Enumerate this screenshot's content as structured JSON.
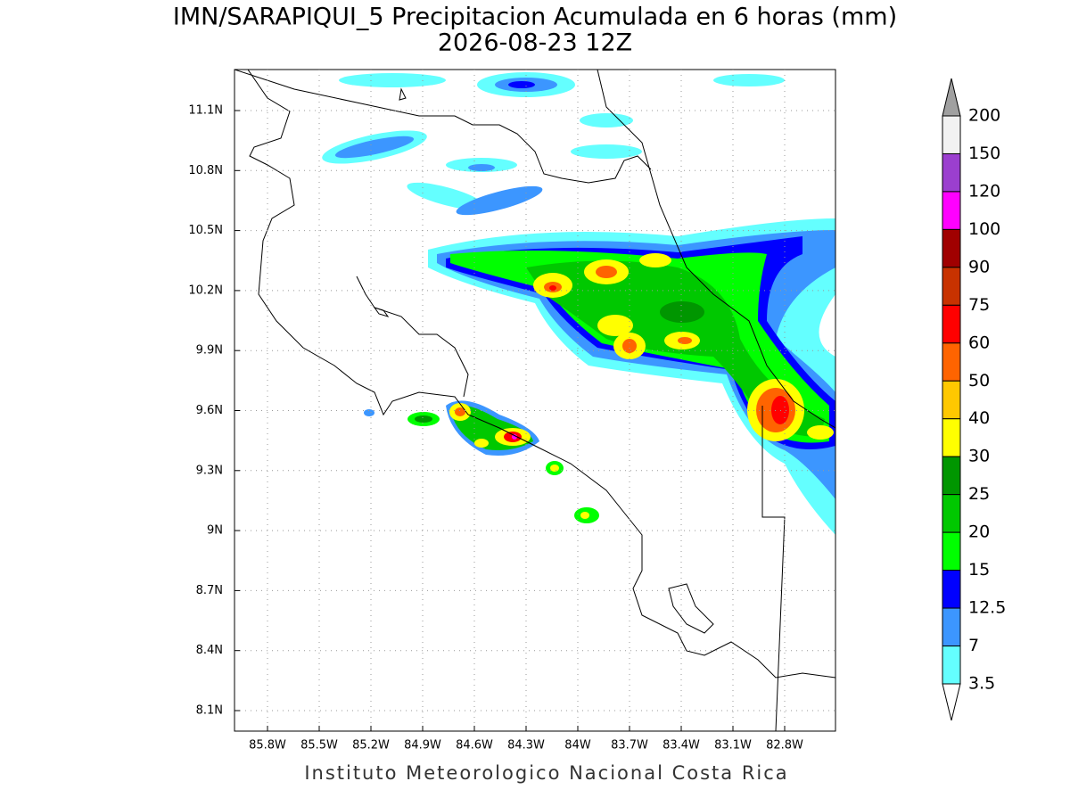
{
  "title": "IMN/SARAPIQUI_5 Precipitacion Acumulada en 6 horas (mm)",
  "subtitle": "2026-08-23 12Z",
  "map": {
    "xticks": [
      "85.8W",
      "85.5W",
      "85.2W",
      "84.9W",
      "84.6W",
      "84.3W",
      "84W",
      "83.7W",
      "83.4W",
      "83.1W",
      "82.8W"
    ],
    "yticks": [
      "11.1N",
      "10.8N",
      "10.5N",
      "10.2N",
      "9.9N",
      "9.6N",
      "9.3N",
      "9N",
      "8.7N",
      "8.4N",
      "8.1N"
    ]
  },
  "colorbar": {
    "labels": [
      200,
      150,
      120,
      100,
      90,
      75,
      60,
      50,
      40,
      30,
      25,
      20,
      15,
      12.5,
      7,
      3.5
    ],
    "colors": [
      "#f2f2f2",
      "#9b3fcf",
      "#ff00ff",
      "#a00000",
      "#c83200",
      "#ff0000",
      "#ff6400",
      "#ffc800",
      "#ffff00",
      "#009600",
      "#00c800",
      "#00ff00",
      "#0000ff",
      "#3c96ff",
      "#64ffff"
    ],
    "over_color": "#a0a0a0",
    "under_color": "#ffffff"
  },
  "footer": "Instituto Meteorologico Nacional Costa Rica"
}
